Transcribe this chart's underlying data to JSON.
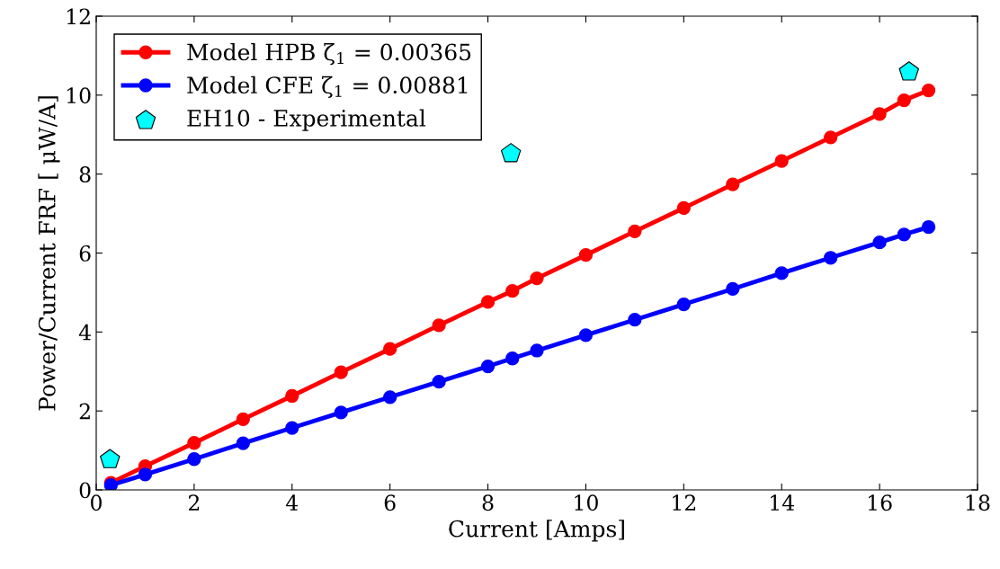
{
  "chart_data": {
    "type": "line",
    "xlabel": "Current [Amps]",
    "ylabel": "Power/Current FRF [ μW/A]",
    "xlim": [
      0,
      18
    ],
    "ylim": [
      0,
      12
    ],
    "xticks": [
      0,
      2,
      4,
      6,
      8,
      10,
      12,
      14,
      16,
      18
    ],
    "yticks": [
      0,
      2,
      4,
      6,
      8,
      10,
      12
    ],
    "grid": false,
    "legend": "top left",
    "marker": "circle",
    "line_style": "solid",
    "series": [
      {
        "name": "Model HPB ζ$_{1}$ = 0.00365",
        "color": "#ff0000",
        "x": [
          0.3,
          1,
          2,
          3,
          4,
          5,
          6,
          7,
          8,
          8.5,
          9,
          10,
          11,
          12,
          13,
          14,
          15,
          16,
          16.5,
          17
        ],
        "values": [
          0.18,
          0.6,
          1.19,
          1.79,
          2.38,
          2.98,
          3.57,
          4.17,
          4.76,
          5.04,
          5.36,
          5.95,
          6.55,
          7.14,
          7.74,
          8.33,
          8.93,
          9.52,
          9.87,
          10.12
        ]
      },
      {
        "name": "Model CFE ζ$_{1}$ = 0.00881",
        "color": "#0000ff",
        "x": [
          0.3,
          1,
          2,
          3,
          4,
          5,
          6,
          7,
          8,
          8.5,
          9,
          10,
          11,
          12,
          13,
          14,
          15,
          16,
          16.5,
          17
        ],
        "values": [
          0.12,
          0.39,
          0.78,
          1.18,
          1.57,
          1.96,
          2.35,
          2.74,
          3.13,
          3.33,
          3.53,
          3.92,
          4.31,
          4.7,
          5.09,
          5.49,
          5.88,
          6.27,
          6.47,
          6.66
        ]
      },
      {
        "name": "EH10 - Experimental",
        "type": "scatter",
        "color": "#00ffff",
        "x": [
          0.28,
          8.47,
          16.6
        ],
        "values": [
          0.77,
          8.52,
          10.59
        ]
      }
    ]
  }
}
